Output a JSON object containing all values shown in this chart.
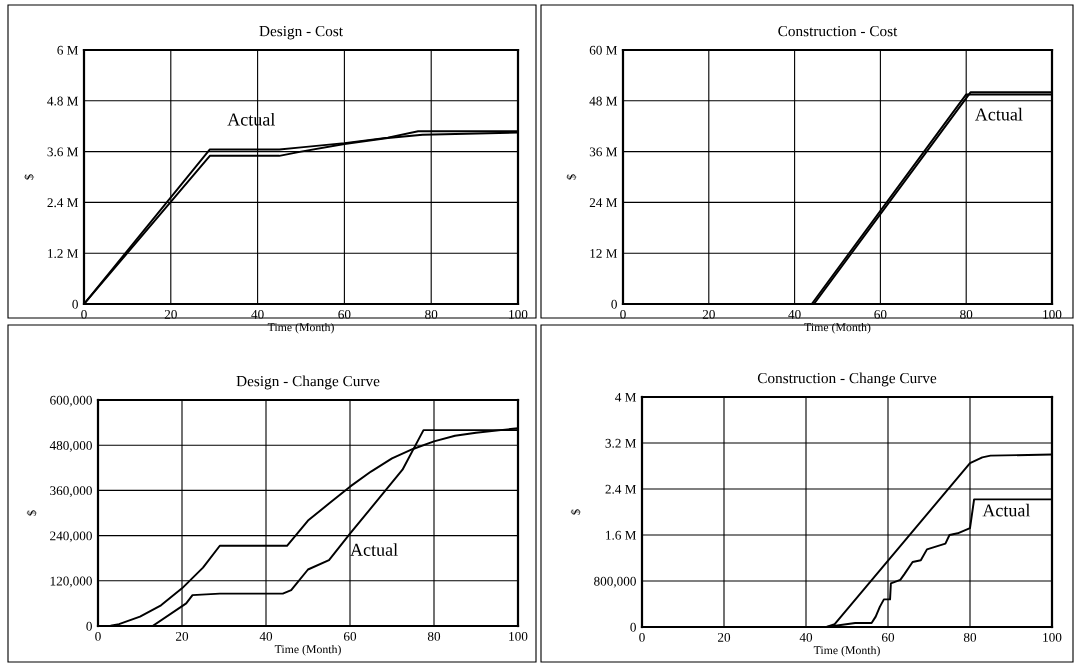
{
  "chart_data": [
    {
      "type": "line",
      "title": "Design - Cost",
      "xlabel": "Time (Month)",
      "ylabel": "$",
      "grid": true,
      "legend": false,
      "xlim": [
        0,
        100
      ],
      "xticks": [
        0,
        20,
        40,
        60,
        80,
        100
      ],
      "ylim": [
        0,
        6000000
      ],
      "yticks": [
        {
          "value": 0,
          "label": "0"
        },
        {
          "value": 1200000,
          "label": "1.2 M"
        },
        {
          "value": 2400000,
          "label": "2.4 M"
        },
        {
          "value": 3600000,
          "label": "3.6 M"
        },
        {
          "value": 4800000,
          "label": "4.8 M"
        },
        {
          "value": 6000000,
          "label": "6 M"
        }
      ],
      "series": [
        {
          "color": "#000000",
          "x": [
            0,
            29,
            45,
            50,
            60,
            70,
            77,
            100
          ],
          "values": [
            0,
            3650000,
            3650000,
            3700000,
            3800000,
            3930000,
            4080000,
            4080000
          ]
        },
        {
          "color": "#000000",
          "x": [
            0,
            29,
            45,
            50,
            60,
            70,
            78,
            100
          ],
          "values": [
            0,
            3500000,
            3500000,
            3600000,
            3780000,
            3920000,
            4000000,
            4050000
          ]
        }
      ],
      "annotations": [
        "Actual"
      ]
    },
    {
      "type": "line",
      "title": "Construction - Cost",
      "xlabel": "Time (Month)",
      "ylabel": "$",
      "grid": true,
      "legend": false,
      "xlim": [
        0,
        100
      ],
      "xticks": [
        0,
        20,
        40,
        60,
        80,
        100
      ],
      "ylim": [
        0,
        60000000
      ],
      "yticks": [
        {
          "value": 0,
          "label": "0"
        },
        {
          "value": 12000000,
          "label": "12 M"
        },
        {
          "value": 24000000,
          "label": "24 M"
        },
        {
          "value": 36000000,
          "label": "36 M"
        },
        {
          "value": 48000000,
          "label": "48 M"
        },
        {
          "value": 60000000,
          "label": "60 M"
        }
      ],
      "series": [
        {
          "color": "#000000",
          "x": [
            0,
            44.5,
            81,
            100
          ],
          "values": [
            0,
            0,
            50000000,
            50000000
          ]
        },
        {
          "color": "#000000",
          "x": [
            0,
            44,
            80,
            100
          ],
          "values": [
            0,
            0,
            49500000,
            49500000
          ]
        }
      ],
      "annotations": [
        "Actual"
      ]
    },
    {
      "type": "line",
      "title": "Design - Change Curve",
      "xlabel": "Time (Month)",
      "ylabel": "$",
      "grid": true,
      "legend": false,
      "xlim": [
        0,
        100
      ],
      "xticks": [
        0,
        20,
        40,
        60,
        80,
        100
      ],
      "ylim": [
        0,
        600000
      ],
      "yticks": [
        {
          "value": 0,
          "label": "0"
        },
        {
          "value": 120000,
          "label": "120,000"
        },
        {
          "value": 240000,
          "label": "240,000"
        },
        {
          "value": 360000,
          "label": "360,000"
        },
        {
          "value": 480000,
          "label": "480,000"
        },
        {
          "value": 600000,
          "label": "600,000"
        }
      ],
      "series": [
        {
          "color": "#000000",
          "x": [
            0,
            13,
            21,
            22.5,
            29,
            44,
            46,
            50,
            55,
            60,
            72.5,
            77.5,
            100
          ],
          "values": [
            0,
            0,
            60000,
            82000,
            86000,
            86000,
            95000,
            150000,
            175000,
            245000,
            415000,
            520000,
            520000
          ]
        },
        {
          "color": "#000000",
          "x": [
            0,
            3,
            5,
            10,
            15,
            20,
            25,
            29,
            45,
            50,
            55,
            60,
            65,
            70,
            75,
            80,
            85,
            90,
            100
          ],
          "values": [
            0,
            1000,
            5000,
            25000,
            55000,
            100000,
            155000,
            213000,
            213000,
            280000,
            325000,
            370000,
            410000,
            445000,
            470000,
            490000,
            505000,
            513000,
            525000
          ]
        }
      ],
      "annotations": [
        "Actual"
      ]
    },
    {
      "type": "line",
      "title": "Construction - Change Curve",
      "xlabel": "Time (Month)",
      "ylabel": "$",
      "grid": true,
      "legend": false,
      "xlim": [
        0,
        100
      ],
      "xticks": [
        0,
        20,
        40,
        60,
        80,
        100
      ],
      "ylim": [
        0,
        4000000
      ],
      "yticks": [
        {
          "value": 0,
          "label": "0"
        },
        {
          "value": 800000,
          "label": "800,000"
        },
        {
          "value": 1600000,
          "label": "1.6 M"
        },
        {
          "value": 2400000,
          "label": "2.4 M"
        },
        {
          "value": 3200000,
          "label": "3.2 M"
        },
        {
          "value": 4000000,
          "label": "4 M"
        }
      ],
      "series": [
        {
          "color": "#000000",
          "x": [
            0,
            45,
            52,
            56,
            57,
            58,
            59,
            60.5,
            60.7,
            63,
            64,
            66,
            68,
            69.5,
            74,
            75,
            77,
            80,
            81,
            100
          ],
          "values": [
            0,
            0,
            70000,
            70000,
            180000,
            350000,
            480000,
            480000,
            760000,
            820000,
            920000,
            1130000,
            1160000,
            1350000,
            1450000,
            1600000,
            1630000,
            1720000,
            2220000,
            2220000
          ]
        },
        {
          "color": "#000000",
          "x": [
            0,
            45,
            47,
            80,
            83,
            85,
            100
          ],
          "values": [
            0,
            0,
            50000,
            2850000,
            2950000,
            2980000,
            3000000
          ]
        }
      ],
      "annotations": [
        "Actual"
      ]
    }
  ]
}
